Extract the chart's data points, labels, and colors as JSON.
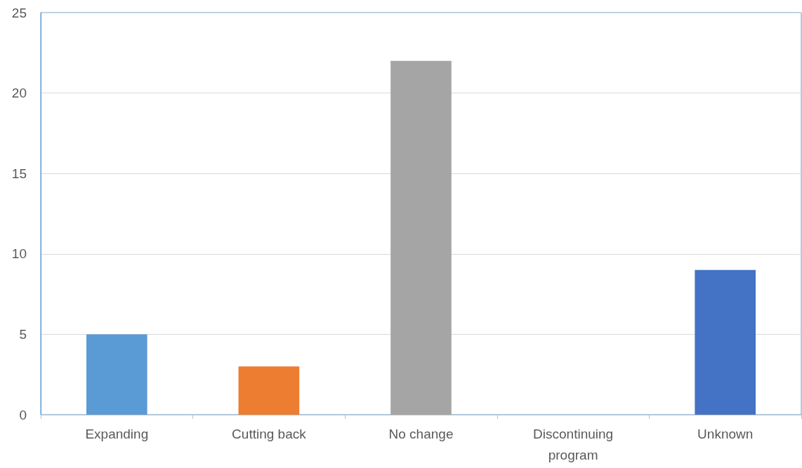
{
  "chart_data": {
    "type": "bar",
    "categories": [
      "Expanding",
      "Cutting back",
      "No change",
      "Discontinuing\nprogram",
      "Unknown"
    ],
    "values": [
      5,
      3,
      22,
      0,
      9
    ],
    "colors": [
      "#5b9bd5",
      "#ed7d31",
      "#a5a5a5",
      "#ffc000",
      "#4472c4"
    ],
    "ylim": [
      0,
      25
    ],
    "yticks": [
      0,
      5,
      10,
      15,
      20,
      25
    ],
    "grid": "y"
  }
}
